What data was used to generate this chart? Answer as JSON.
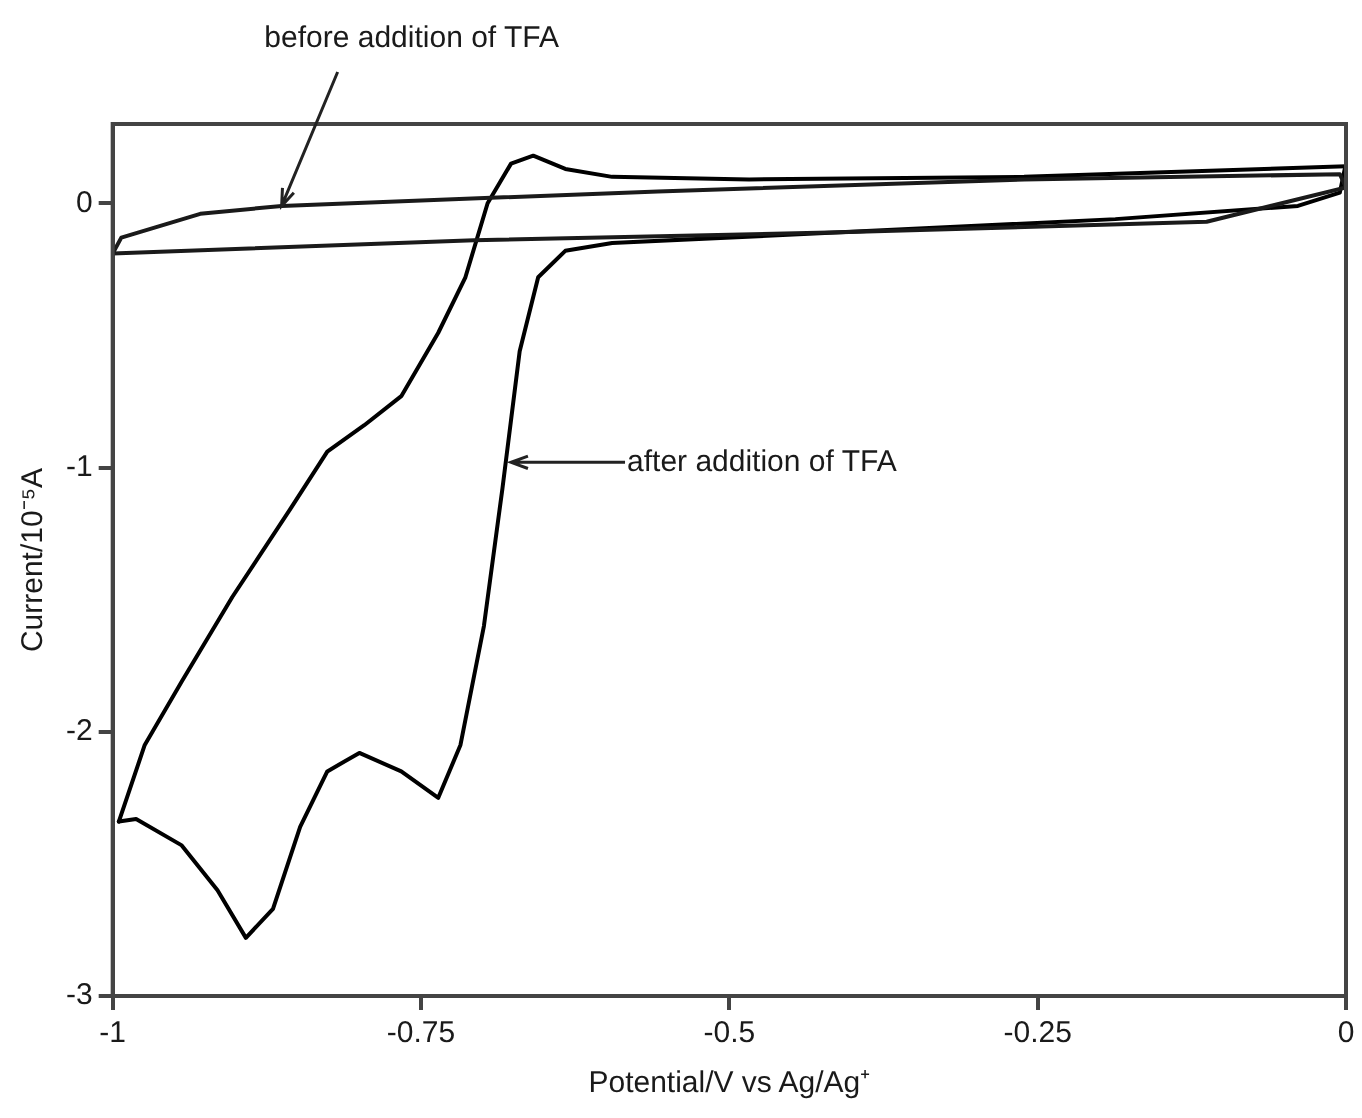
{
  "chart_data": {
    "type": "line",
    "xlabel": "Potential/V vs Ag/Ag⁺",
    "ylabel": "Current/10⁻⁵A",
    "xlim": [
      -1,
      0
    ],
    "ylim": [
      -3,
      0.3
    ],
    "xticks": [
      -1,
      -0.75,
      -0.5,
      -0.25,
      0
    ],
    "yticks": [
      -3,
      -2,
      -1,
      0
    ],
    "grid": false,
    "legend": false,
    "marker": "none",
    "line_style": "solid",
    "series": [
      {
        "color": "#1a1a1a",
        "x": [
          -1,
          -0.993,
          -0.929,
          -0.863,
          -0.558,
          -0.261,
          -0.005,
          0
        ],
        "values": [
          -0.19,
          -0.13,
          -0.04,
          -0.01,
          0.045,
          0.09,
          0.11,
          0.06
        ]
      },
      {
        "color": "#1a1a1a",
        "x": [
          0,
          -0.113,
          -0.41,
          -0.707,
          -1
        ],
        "values": [
          0.06,
          -0.07,
          -0.11,
          -0.14,
          -0.19
        ]
      },
      {
        "color": "#000000",
        "x": [
          0,
          -0.261,
          -0.484,
          -0.595,
          -0.633,
          -0.659,
          -0.677,
          -0.696,
          -0.714,
          -0.736,
          -0.766,
          -0.796,
          -0.826,
          -0.855,
          -0.903,
          -0.944,
          -0.974,
          -0.995
        ],
        "values": [
          0.14,
          0.1,
          0.09,
          0.1,
          0.13,
          0.18,
          0.15,
          0,
          -0.28,
          -0.49,
          -0.73,
          -0.84,
          -0.94,
          -1.15,
          -1.49,
          -1.81,
          -2.05,
          -2.34
        ]
      },
      {
        "color": "#000000",
        "x": [
          -0.995,
          -0.981,
          -0.944,
          -0.915,
          -0.892,
          -0.87,
          -0.848,
          -0.826,
          -0.8,
          -0.766,
          -0.736,
          -0.718,
          -0.699,
          -0.684,
          -0.67,
          -0.655,
          -0.633,
          -0.595,
          -0.41,
          -0.187,
          -0.039,
          -0.005,
          -0.001
        ],
        "values": [
          -2.34,
          -2.33,
          -2.43,
          -2.6,
          -2.78,
          -2.67,
          -2.36,
          -2.15,
          -2.08,
          -2.15,
          -2.25,
          -2.05,
          -1.6,
          -1.08,
          -0.56,
          -0.28,
          -0.18,
          -0.15,
          -0.11,
          -0.06,
          -0.01,
          0.04,
          0.13
        ]
      }
    ],
    "annotations": [
      {
        "text": "before addition of TFA",
        "x": -0.863,
        "y": -0.01
      },
      "after addition of TFA"
    ]
  }
}
